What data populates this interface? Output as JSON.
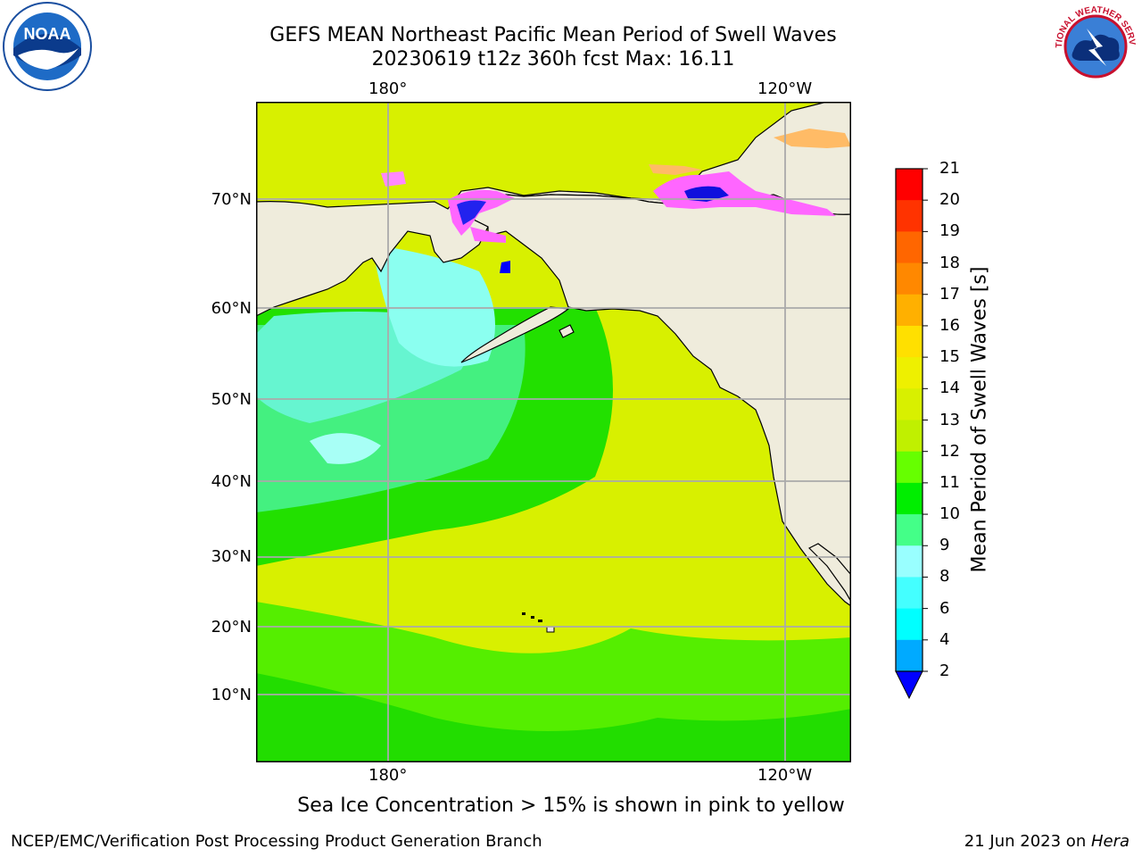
{
  "title_line1": "GEFS MEAN Northeast Pacific Mean Period of Swell Waves",
  "title_line2": "20230619 t12z 360h fcst   Max: 16.11",
  "lon_labels": [
    "180°",
    "120°W"
  ],
  "lat_labels": [
    "70°N",
    "60°N",
    "50°N",
    "40°N",
    "30°N",
    "20°N",
    "10°N"
  ],
  "colorbar": {
    "label": "Mean Period of Swell Waves [s]",
    "ticks": [
      "21",
      "20",
      "19",
      "18",
      "17",
      "16",
      "15",
      "14",
      "13",
      "12",
      "11",
      "10",
      "9",
      "8",
      "6",
      "4",
      "2"
    ],
    "colors": [
      "#ff0000",
      "#ff3300",
      "#ff6600",
      "#ff8800",
      "#ffb000",
      "#ffe000",
      "#eef000",
      "#d8f000",
      "#c0f000",
      "#66ff00",
      "#00ee00",
      "#44ff88",
      "#99ffff",
      "#44ffff",
      "#00ffff",
      "#00aaff",
      "#0000ff"
    ]
  },
  "legend_note": "Sea Ice Concentration > 15% is shown in pink to yellow",
  "footer": {
    "credit": "NCEP/EMC/Verification Post Processing Product Generation Branch",
    "date": "21 Jun 2023 on ",
    "machine": "Hera"
  },
  "logos": {
    "noaa_text": "NOAA",
    "nws_text": "NATIONAL WEATHER SERVICE"
  },
  "land_color": "#efecdc"
}
